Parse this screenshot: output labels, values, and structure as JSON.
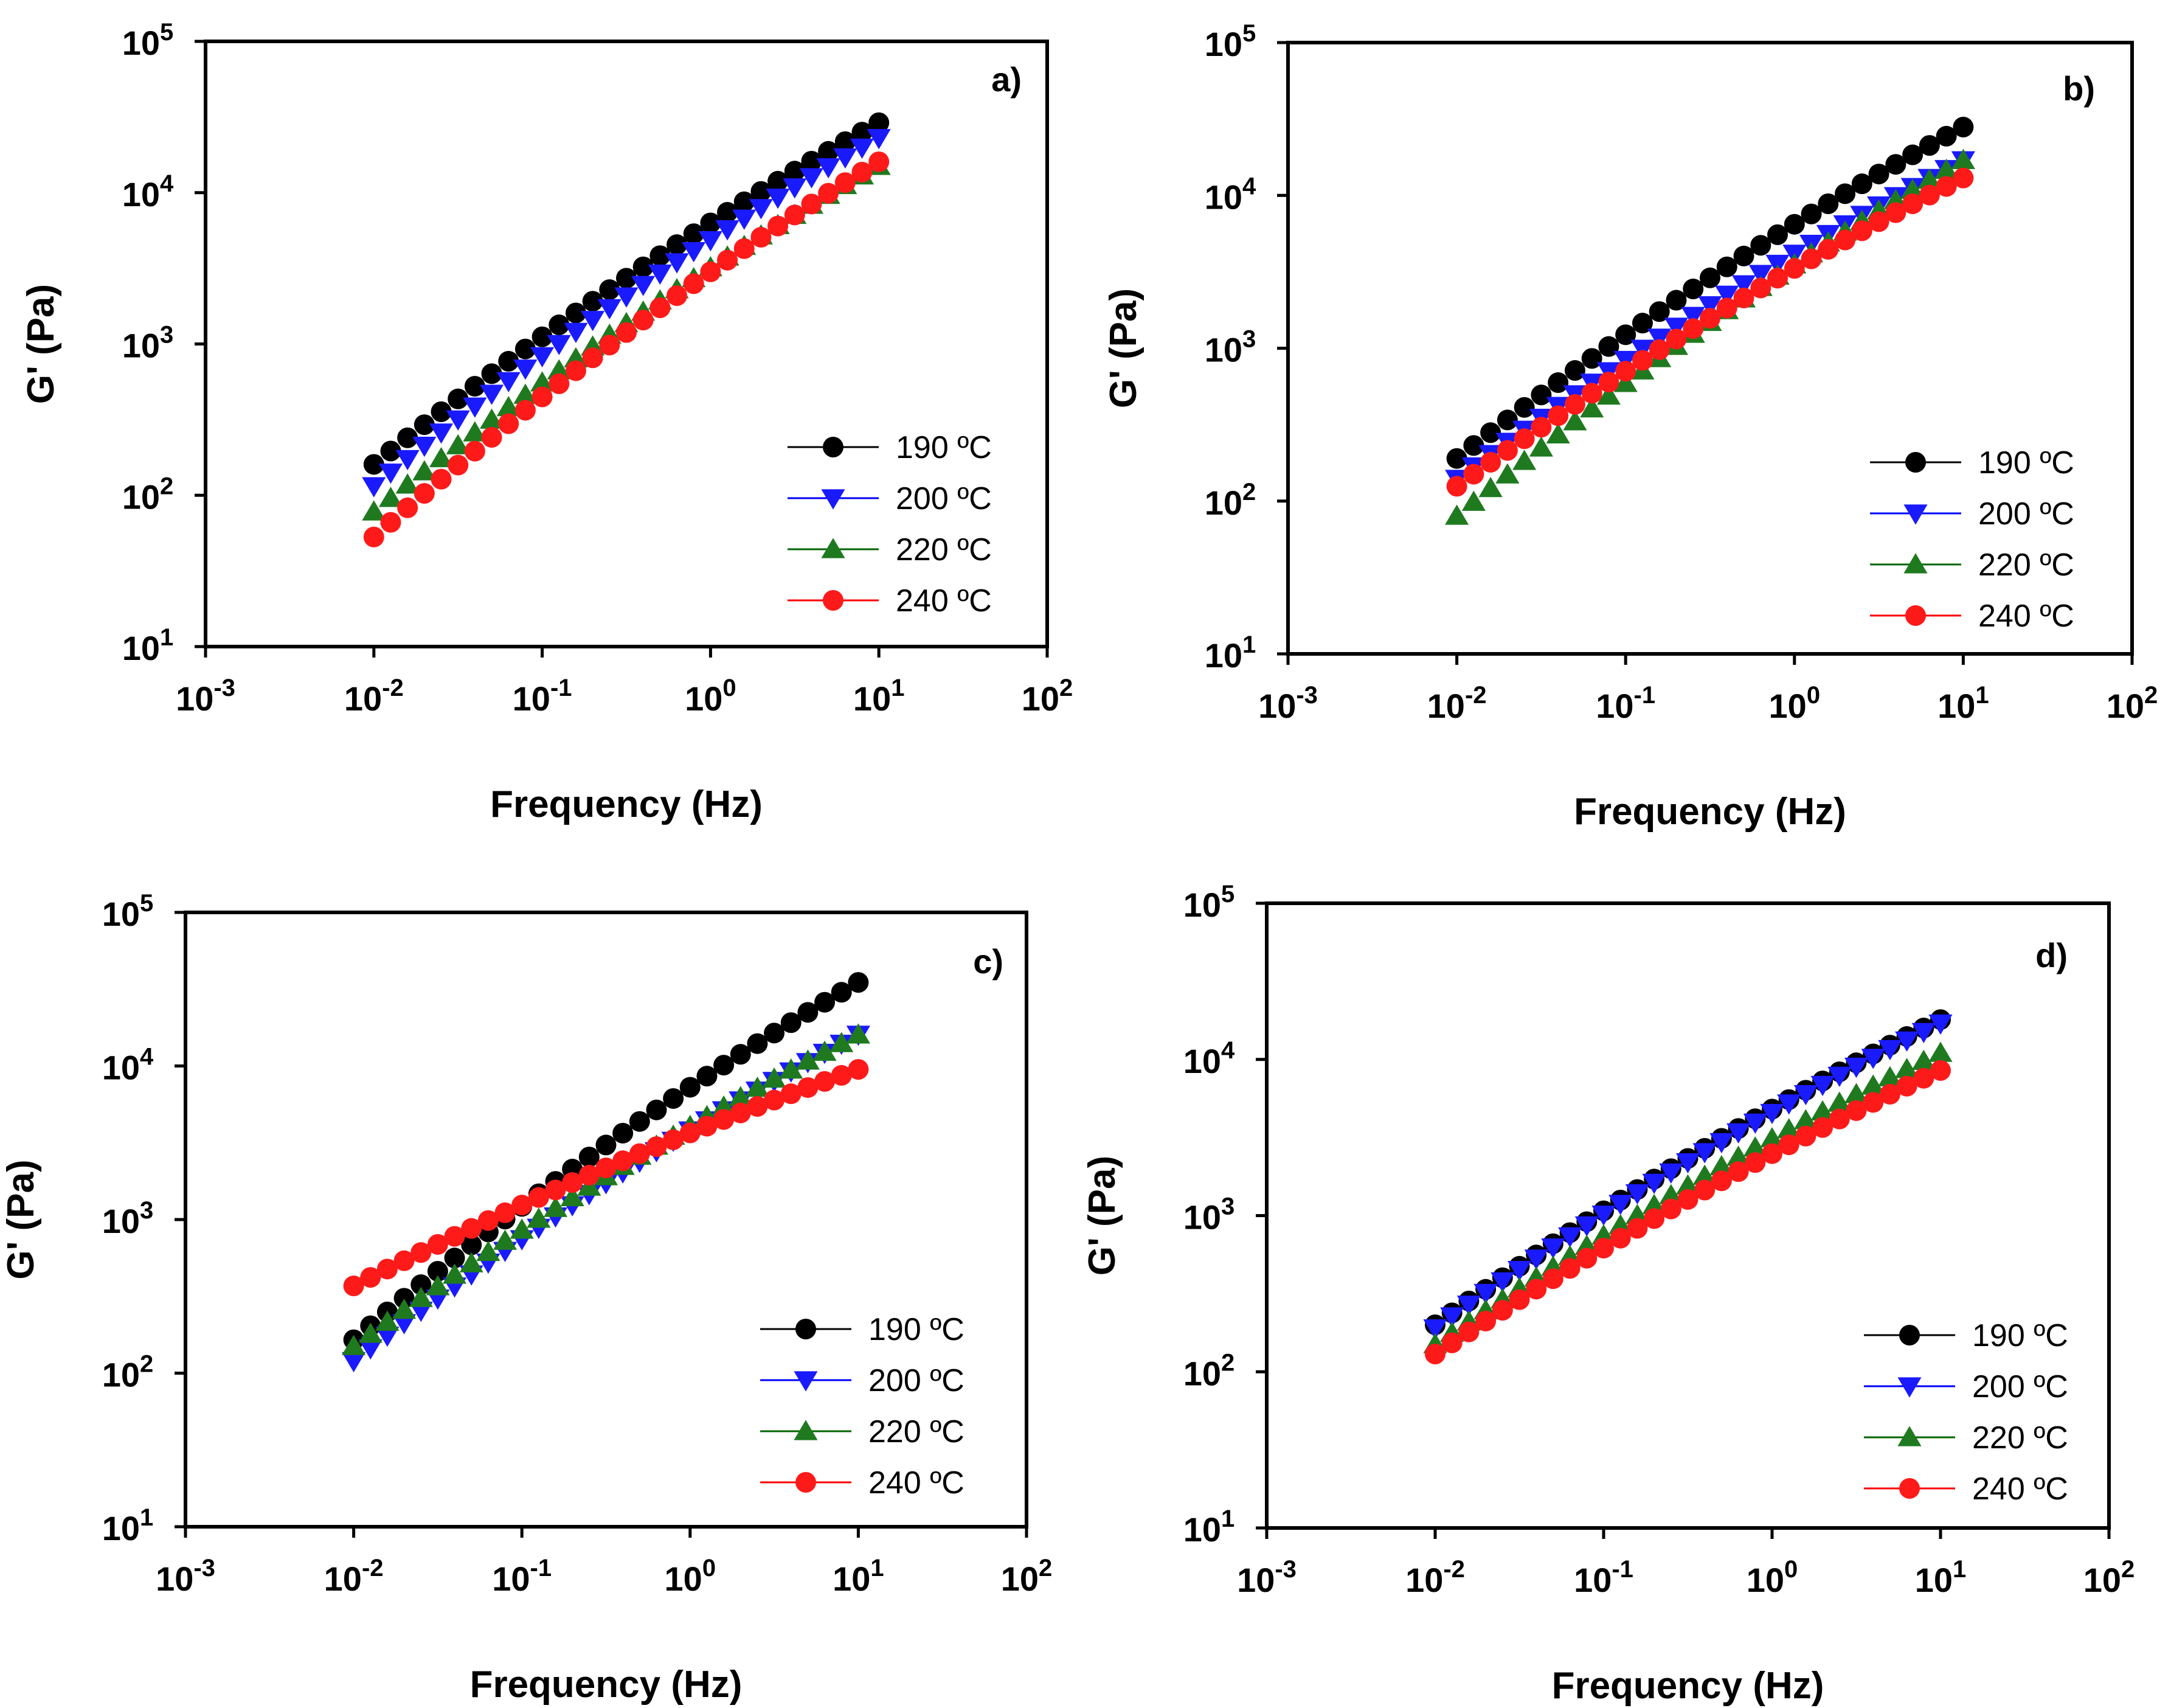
{
  "chart_data": [
    {
      "type": "scatter",
      "panel_label": "a)",
      "xlabel": "Frequency (Hz)",
      "ylabel": "G' (Pa)",
      "xscale": "log",
      "yscale": "log",
      "xlim": [
        0.001,
        100
      ],
      "ylim": [
        10,
        100000
      ],
      "xticks": [
        "10-3",
        "10-2",
        "10-1",
        "100",
        "101",
        "102"
      ],
      "yticks": [
        "101",
        "102",
        "103",
        "104",
        "105"
      ],
      "legend": "center-right",
      "series": [
        {
          "name": "190 ºC",
          "marker": "circle",
          "color": "#000000",
          "line_color": "#000000",
          "start": 160,
          "end": 29000
        },
        {
          "name": "200 ºC",
          "marker": "triangle-down",
          "color": "#1a1aff",
          "line_color": "#0000ff",
          "start": 115,
          "end": 23000
        },
        {
          "name": "220 ºC",
          "marker": "triangle-up",
          "color": "#1f7a1f",
          "line_color": "#006400",
          "start": 78,
          "end": 15000
        },
        {
          "name": "240 ºC",
          "marker": "circle",
          "color": "#ff1a1a",
          "line_color": "#ff0000",
          "start": 53,
          "end": 16000
        }
      ]
    },
    {
      "type": "scatter",
      "panel_label": "b)",
      "xlabel": "Frequency (Hz)",
      "ylabel": "G' (Pa)",
      "xscale": "log",
      "yscale": "log",
      "xlim": [
        0.001,
        100
      ],
      "ylim": [
        10,
        100000
      ],
      "xticks": [
        "10-3",
        "10-2",
        "10-1",
        "100",
        "101",
        "102"
      ],
      "yticks": [
        "101",
        "102",
        "103",
        "104",
        "105"
      ],
      "legend": "center-right",
      "series": [
        {
          "name": "190 ºC",
          "marker": "circle",
          "color": "#000000",
          "line_color": "#000000",
          "start": 190,
          "end": 28000
        },
        {
          "name": "200 ºC",
          "marker": "triangle-down",
          "color": "#1a1aff",
          "line_color": "#0000ff",
          "start": 140,
          "end": 17000
        },
        {
          "name": "220 ºC",
          "marker": "triangle-up",
          "color": "#1f7a1f",
          "line_color": "#006400",
          "start": 80,
          "end": 17000
        },
        {
          "name": "240 ºC",
          "marker": "circle",
          "color": "#ff1a1a",
          "line_color": "#ff0000",
          "start": 125,
          "end": 13000
        }
      ]
    },
    {
      "type": "scatter",
      "panel_label": "c)",
      "xlabel": "Frequency (Hz)",
      "ylabel": "G' (Pa)",
      "xscale": "log",
      "yscale": "log",
      "xlim": [
        0.001,
        100
      ],
      "ylim": [
        10,
        100000
      ],
      "xticks": [
        "10-3",
        "10-2",
        "10-1",
        "100",
        "101",
        "102"
      ],
      "yticks": [
        "101",
        "102",
        "103",
        "104",
        "105"
      ],
      "legend": "center-right",
      "series": [
        {
          "name": "190 ºC",
          "marker": "circle",
          "color": "#000000",
          "line_color": "#000000",
          "start": 165,
          "end": 35000
        },
        {
          "name": "200 ºC",
          "marker": "triangle-down",
          "color": "#1a1aff",
          "line_color": "#0000ff",
          "start": 120,
          "end": 16000
        },
        {
          "name": "220 ºC",
          "marker": "triangle-up",
          "color": "#1f7a1f",
          "line_color": "#006400",
          "start": 150,
          "end": 16000
        },
        {
          "name": "240 ºC",
          "marker": "circle",
          "color": "#ff1a1a",
          "line_color": "#ff0000",
          "start": 370,
          "end": 9500
        }
      ]
    },
    {
      "type": "scatter",
      "panel_label": "d)",
      "xlabel": "Frequency (Hz)",
      "ylabel": "G' (Pa)",
      "xscale": "log",
      "yscale": "log",
      "xlim": [
        0.001,
        100
      ],
      "ylim": [
        10,
        100000
      ],
      "xticks": [
        "10-3",
        "10-2",
        "10-1",
        "100",
        "101",
        "102"
      ],
      "yticks": [
        "101",
        "102",
        "103",
        "104",
        "105"
      ],
      "legend": "center-right",
      "series": [
        {
          "name": "190 ºC",
          "marker": "circle",
          "color": "#000000",
          "line_color": "#000000",
          "start": 200,
          "end": 18000
        },
        {
          "name": "200 ºC",
          "marker": "triangle-down",
          "color": "#1a1aff",
          "line_color": "#0000ff",
          "start": 190,
          "end": 17000
        },
        {
          "name": "220 ºC",
          "marker": "triangle-up",
          "color": "#1f7a1f",
          "line_color": "#006400",
          "start": 150,
          "end": 11000
        },
        {
          "name": "240 ºC",
          "marker": "circle",
          "color": "#ff1a1a",
          "line_color": "#ff0000",
          "start": 130,
          "end": 8500
        }
      ]
    }
  ]
}
